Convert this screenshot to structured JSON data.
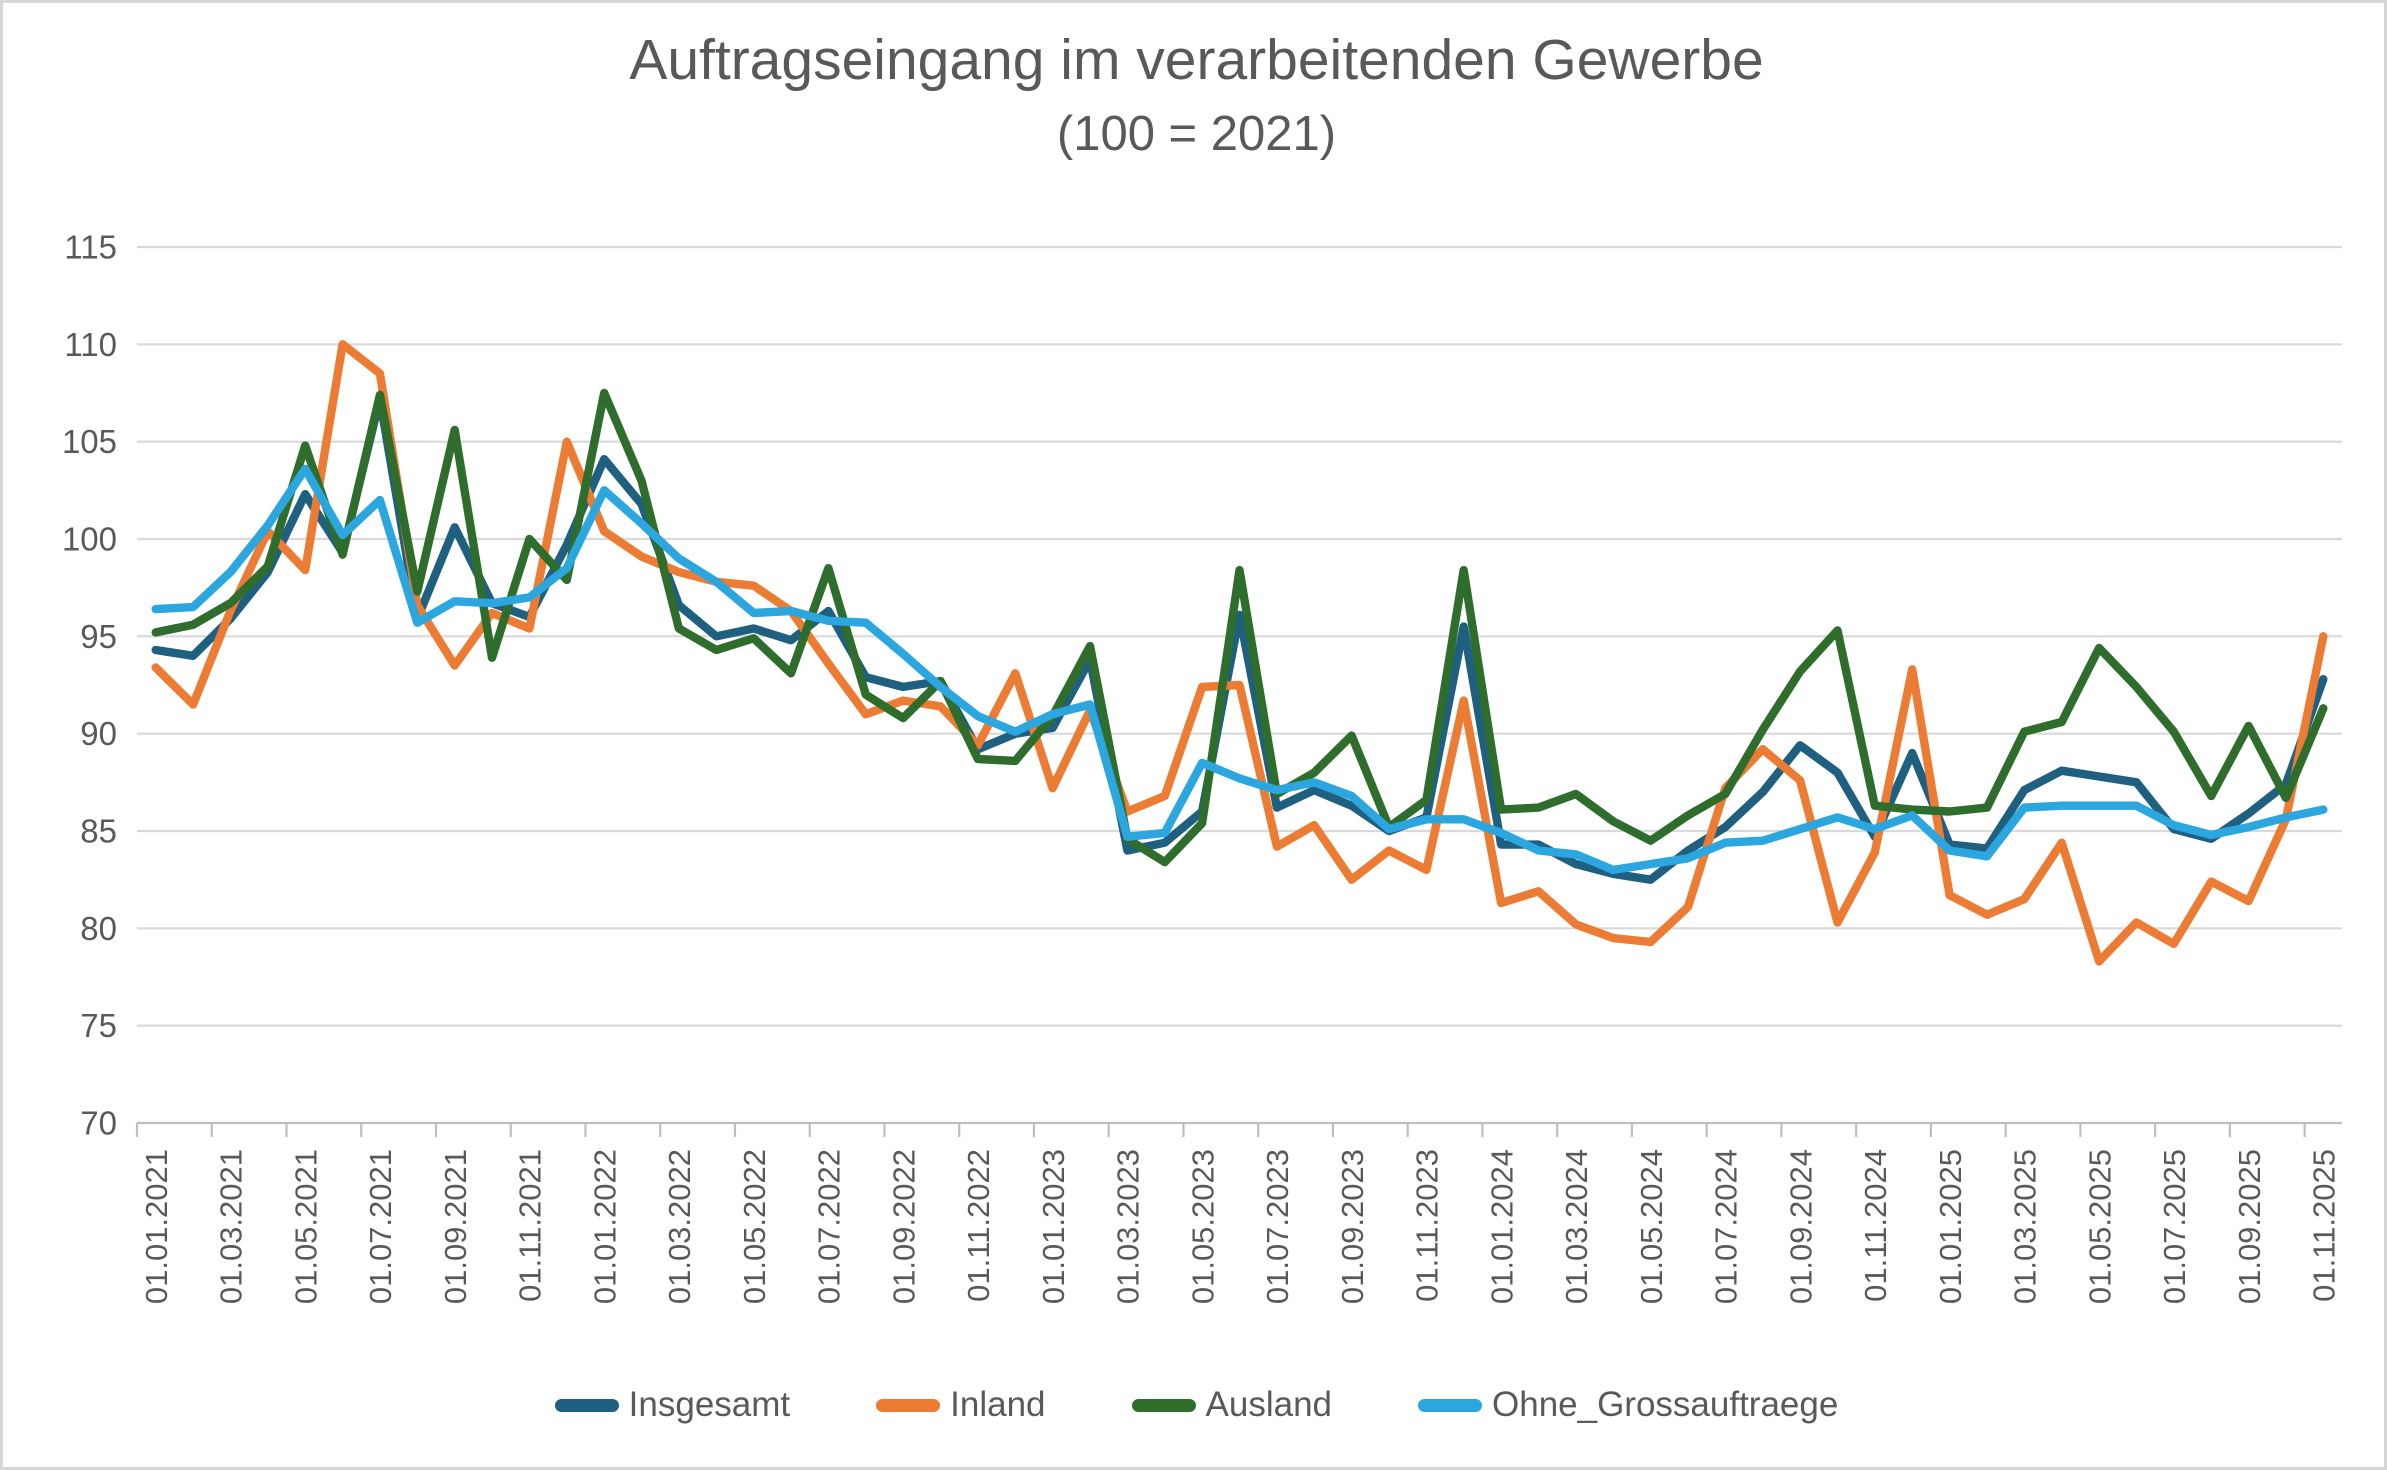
{
  "title": "Auftragseingang im verarbeitenden Gewerbe",
  "subtitle": "(100 = 2021)",
  "chart_data": {
    "type": "line",
    "title": "Auftragseingang im verarbeitenden Gewerbe",
    "subtitle": "(100 = 2021)",
    "xlabel": "",
    "ylabel": "",
    "ylim": [
      70,
      115
    ],
    "y_tick_labels": [
      70,
      75,
      80,
      85,
      90,
      95,
      100,
      105,
      110,
      115
    ],
    "grid": true,
    "legend_position": "bottom",
    "x_tick_labels": [
      "01.01.2021",
      "01.03.2021",
      "01.05.2021",
      "01.07.2021",
      "01.09.2021",
      "01.11.2021",
      "01.01.2022",
      "01.03.2022",
      "01.05.2022",
      "01.07.2022",
      "01.09.2022",
      "01.11.2022",
      "01.01.2023",
      "01.03.2023",
      "01.05.2023",
      "01.07.2023",
      "01.09.2023",
      "01.11.2023",
      "01.01.2024",
      "01.03.2024",
      "01.05.2024",
      "01.07.2024",
      "01.09.2024",
      "01.11.2024",
      "01.01.2025",
      "01.03.2025",
      "01.05.2025",
      "01.07.2025",
      "01.09.2025",
      "01.11.2025"
    ],
    "categories": [
      "01.01.2021",
      "01.02.2021",
      "01.03.2021",
      "01.04.2021",
      "01.05.2021",
      "01.06.2021",
      "01.07.2021",
      "01.08.2021",
      "01.09.2021",
      "01.10.2021",
      "01.11.2021",
      "01.12.2021",
      "01.01.2022",
      "01.02.2022",
      "01.03.2022",
      "01.04.2022",
      "01.05.2022",
      "01.06.2022",
      "01.07.2022",
      "01.08.2022",
      "01.09.2022",
      "01.10.2022",
      "01.11.2022",
      "01.12.2022",
      "01.01.2023",
      "01.02.2023",
      "01.03.2023",
      "01.04.2023",
      "01.05.2023",
      "01.06.2023",
      "01.07.2023",
      "01.08.2023",
      "01.09.2023",
      "01.10.2023",
      "01.11.2023",
      "01.12.2023",
      "01.01.2024",
      "01.02.2024",
      "01.03.2024",
      "01.04.2024",
      "01.05.2024",
      "01.06.2024",
      "01.07.2024",
      "01.08.2024",
      "01.09.2024",
      "01.10.2024",
      "01.11.2024",
      "01.12.2024",
      "01.01.2025",
      "01.02.2025",
      "01.03.2025",
      "01.04.2025",
      "01.05.2025",
      "01.06.2025",
      "01.07.2025",
      "01.08.2025",
      "01.09.2025",
      "01.10.2025",
      "01.11.2025"
    ],
    "series": [
      {
        "name": "Insgesamt",
        "color": "#1f5f80",
        "values": [
          94.3,
          94.0,
          95.9,
          98.3,
          102.3,
          99.3,
          107.2,
          95.9,
          100.6,
          96.7,
          96.0,
          99.7,
          104.1,
          101.8,
          96.6,
          95.0,
          95.4,
          94.8,
          96.3,
          92.9,
          92.4,
          92.7,
          89.2,
          90.0,
          90.3,
          93.8,
          84.0,
          84.4,
          86.0,
          96.1,
          86.2,
          87.1,
          86.3,
          85.0,
          85.7,
          95.5,
          84.3,
          84.3,
          83.3,
          82.8,
          82.5,
          84.0,
          85.2,
          87.0,
          89.4,
          88.0,
          84.7,
          89.0,
          84.3,
          84.1,
          87.1,
          88.1,
          87.8,
          87.5,
          85.1,
          84.6,
          85.9,
          87.4,
          92.8
        ]
      },
      {
        "name": "Inland",
        "color": "#ec7c33",
        "values": [
          93.4,
          91.5,
          96.3,
          100.4,
          98.4,
          110.0,
          108.5,
          96.6,
          93.5,
          96.2,
          95.4,
          105.0,
          100.4,
          99.1,
          98.3,
          97.8,
          97.6,
          96.3,
          93.6,
          91.0,
          91.7,
          91.4,
          89.4,
          93.1,
          87.2,
          91.2,
          86.0,
          86.8,
          92.4,
          92.5,
          84.2,
          85.3,
          82.5,
          84.0,
          83.0,
          91.7,
          81.3,
          81.9,
          80.2,
          79.5,
          79.3,
          81.1,
          87.2,
          89.2,
          87.6,
          80.3,
          83.9,
          93.3,
          81.7,
          80.7,
          81.5,
          84.4,
          78.3,
          80.3,
          79.2,
          82.4,
          81.4,
          85.6,
          95.0
        ]
      },
      {
        "name": "Ausland",
        "color": "#2f6d2d",
        "values": [
          95.2,
          95.6,
          96.7,
          98.6,
          104.8,
          99.2,
          107.4,
          97.3,
          105.6,
          93.9,
          100.0,
          97.9,
          107.5,
          103.0,
          95.4,
          94.3,
          94.9,
          93.1,
          98.5,
          92.0,
          90.8,
          92.7,
          88.7,
          88.6,
          90.9,
          94.5,
          84.6,
          83.4,
          85.4,
          98.4,
          86.9,
          88.0,
          89.9,
          85.2,
          86.6,
          98.4,
          86.1,
          86.2,
          86.9,
          85.5,
          84.5,
          85.8,
          86.9,
          90.2,
          93.2,
          95.3,
          86.3,
          86.1,
          86.0,
          86.2,
          90.1,
          90.6,
          94.4,
          92.4,
          90.1,
          86.8,
          90.4,
          86.7,
          91.3
        ]
      },
      {
        "name": "Ohne_Grossauftraege",
        "color": "#2ba6de",
        "values": [
          96.4,
          96.5,
          98.3,
          100.7,
          103.6,
          100.2,
          102.0,
          95.7,
          96.8,
          96.7,
          97.0,
          98.5,
          102.5,
          100.8,
          99.0,
          97.8,
          96.2,
          96.3,
          95.8,
          95.7,
          94.1,
          92.4,
          90.9,
          90.1,
          91.0,
          91.5,
          84.7,
          84.9,
          88.5,
          87.7,
          87.1,
          87.5,
          86.8,
          85.1,
          85.6,
          85.6,
          84.9,
          84.0,
          83.8,
          83.0,
          83.3,
          83.6,
          84.4,
          84.5,
          85.1,
          85.7,
          85.1,
          85.8,
          84.0,
          83.7,
          86.2,
          86.3,
          86.3,
          86.3,
          85.3,
          84.8,
          85.2,
          85.7,
          86.1
        ]
      }
    ]
  }
}
